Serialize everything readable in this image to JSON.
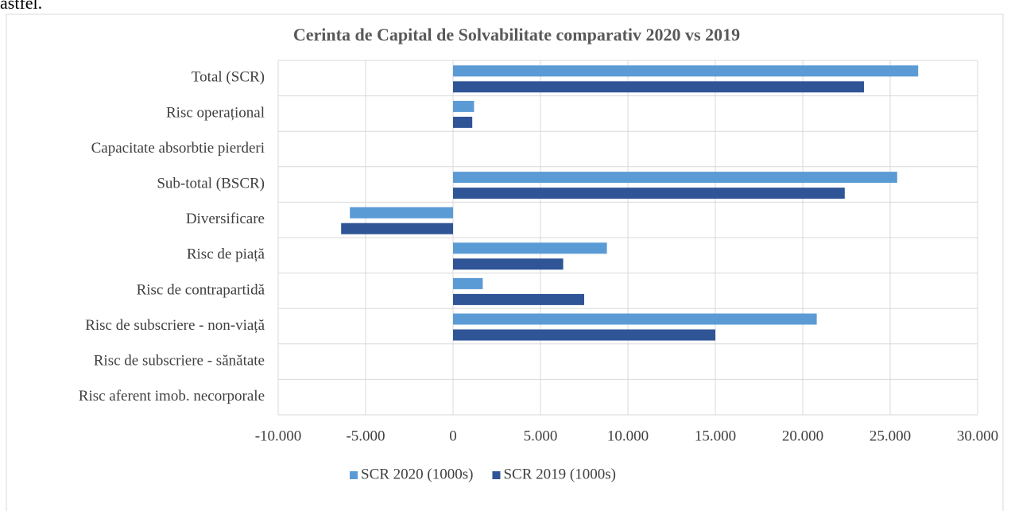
{
  "page_text": "astfel.",
  "chart_data": {
    "type": "barh",
    "title": "Cerinta de Capital de Solvabilitate comparativ 2020 vs 2019",
    "categories": [
      "Total (SCR)",
      "Risc operațional",
      "Capacitate absorbtie pierderi",
      "Sub-total (BSCR)",
      "Diversificare",
      "Risc de piață",
      "Risc de contrapartidă",
      "Risc de subscriere - non-viață",
      "Risc de subscriere - sănătate",
      "Risc aferent imob. necorporale"
    ],
    "series": [
      {
        "name": "SCR 2020 (1000s)",
        "color": "#5b9bd5",
        "values": [
          26600,
          1200,
          0,
          25400,
          -5900,
          8800,
          1700,
          20800,
          0,
          0
        ]
      },
      {
        "name": "SCR 2019 (1000s)",
        "color": "#2f5597",
        "values": [
          23500,
          1100,
          0,
          22400,
          -6400,
          6300,
          7500,
          15000,
          0,
          0
        ]
      }
    ],
    "xlim": [
      -10000,
      30000
    ],
    "xticks": [
      {
        "value": -10000,
        "label": "-10.000"
      },
      {
        "value": -5000,
        "label": "-5.000"
      },
      0,
      {
        "value": 5000,
        "label": "5.000"
      },
      {
        "value": 10000,
        "label": "10.000"
      },
      {
        "value": 15000,
        "label": "15.000"
      },
      {
        "value": 20000,
        "label": "20.000"
      },
      {
        "value": 25000,
        "label": "25.000"
      },
      {
        "value": 30000,
        "label": "30.000"
      }
    ],
    "grid": true,
    "legend": "bottom"
  }
}
